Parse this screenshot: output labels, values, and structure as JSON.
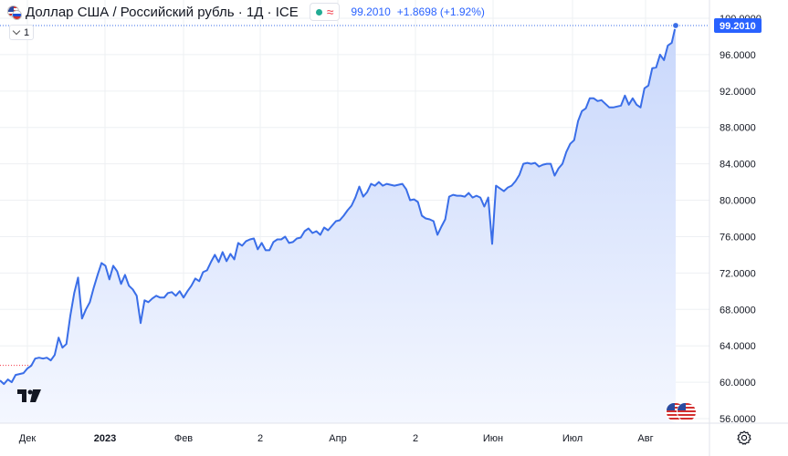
{
  "header": {
    "title": "Доллар США / Российский рубль · 1Д · ICE",
    "last_price": "99.2010",
    "change": "+1.8698 (+1.92%)",
    "interval_value": "1",
    "icons": [
      "usd-rub-flag-icon",
      "market-status-dot-icon",
      "approx-icon",
      "chevron-down-icon",
      "tradingview-logo-icon",
      "usd-coin-icon",
      "settings-gear-icon"
    ]
  },
  "colors": {
    "line": "#3a6ee8",
    "area_top": "#c8d7fb",
    "area_bottom": "#f4f7ff",
    "grid": "#eef0f3",
    "axis_text": "#131722",
    "price_label_bg": "#2962ff",
    "down": "#f23645",
    "live": "#22ab94"
  },
  "chart_data": {
    "type": "area",
    "title": "",
    "xlabel": "",
    "ylabel": "",
    "ylim": [
      55.5,
      100.2
    ],
    "yticks": [
      "56.0000",
      "60.0000",
      "64.0000",
      "68.0000",
      "72.0000",
      "76.0000",
      "80.0000",
      "84.0000",
      "88.0000",
      "92.0000",
      "96.0000",
      "100.0000"
    ],
    "xticks": [
      "Дек",
      "2023",
      "Фев",
      "2",
      "Апр",
      "2",
      "Июн",
      "Июл",
      "Авг"
    ],
    "last_value_label": "99.2010",
    "previous_close_level": 61.85,
    "grid": true,
    "legend": "none",
    "series": [
      {
        "values": [
          60.2,
          59.8,
          60.3,
          60.0,
          60.8,
          60.9,
          61.0,
          61.5,
          61.8,
          62.6,
          62.7,
          62.6,
          62.7,
          62.4,
          63.0,
          64.9,
          63.8,
          64.2,
          67.3,
          69.8,
          71.5,
          67.0,
          68.0,
          68.8,
          70.4,
          71.8,
          73.1,
          72.8,
          71.3,
          72.8,
          72.2,
          70.8,
          71.8,
          70.6,
          70.2,
          69.5,
          66.5,
          69.0,
          68.8,
          69.2,
          69.5,
          69.3,
          69.3,
          69.8,
          69.9,
          69.5,
          70.0,
          69.3,
          70.0,
          70.6,
          71.4,
          71.1,
          72.1,
          72.3,
          73.2,
          74.0,
          73.2,
          74.3,
          73.3,
          74.1,
          73.5,
          75.3,
          75.0,
          75.5,
          75.7,
          75.8,
          74.6,
          75.3,
          74.5,
          74.5,
          75.4,
          75.7,
          75.7,
          76.0,
          75.3,
          75.4,
          75.8,
          75.9,
          76.6,
          76.9,
          76.4,
          76.6,
          76.2,
          77.0,
          76.7,
          77.2,
          77.7,
          77.8,
          78.3,
          78.9,
          79.4,
          80.3,
          81.5,
          80.4,
          80.9,
          81.8,
          81.6,
          82.0,
          81.6,
          81.8,
          81.7,
          81.6,
          81.7,
          81.8,
          81.2,
          80.0,
          80.1,
          79.8,
          78.3,
          78.0,
          77.9,
          77.7,
          76.2,
          77.1,
          77.9,
          80.4,
          80.6,
          80.5,
          80.5,
          80.4,
          80.8,
          80.3,
          80.5,
          80.3,
          79.3,
          80.3,
          75.2,
          81.6,
          81.3,
          81.0,
          81.4,
          81.6,
          82.1,
          82.8,
          84.0,
          84.1,
          84.0,
          84.1,
          83.7,
          83.9,
          84.0,
          84.0,
          82.7,
          83.5,
          84.0,
          85.3,
          86.2,
          86.6,
          88.7,
          89.8,
          90.1,
          91.2,
          91.2,
          90.9,
          91.0,
          90.6,
          90.2,
          90.2,
          90.3,
          90.4,
          91.5,
          90.5,
          91.2,
          90.5,
          90.2,
          92.3,
          92.6,
          94.5,
          94.6,
          96.0,
          95.4,
          97.0,
          97.3,
          99.2
        ]
      }
    ]
  }
}
